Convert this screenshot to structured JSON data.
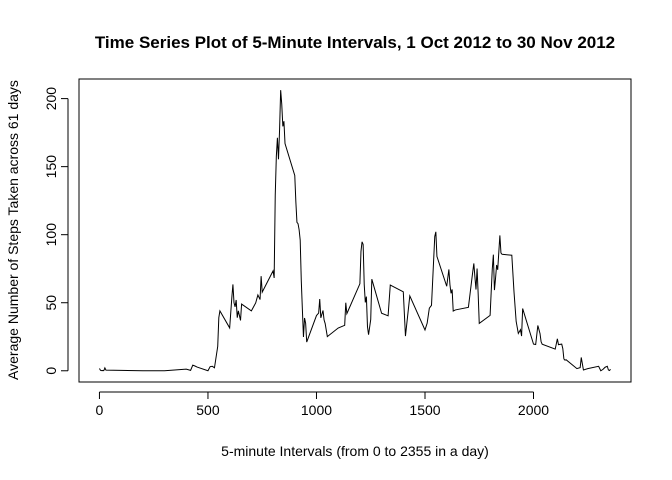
{
  "chart_data": {
    "type": "line",
    "title": "Time Series Plot of 5-Minute Intervals, 1 Oct 2012 to 30 Nov 2012",
    "x_label": "5-minute Intervals (from 0 to 2355 in a day)",
    "y_label": "Average Number of Steps Taken across 61 days",
    "color": "#000000",
    "x": [
      0,
      5,
      10,
      15,
      20,
      25,
      30,
      100,
      200,
      300,
      400,
      420,
      430,
      440,
      450,
      500,
      510,
      520,
      530,
      545,
      550,
      555,
      600,
      610,
      615,
      620,
      625,
      630,
      635,
      640,
      650,
      655,
      700,
      720,
      730,
      740,
      745,
      750,
      800,
      805,
      810,
      815,
      820,
      825,
      830,
      835,
      840,
      845,
      850,
      855,
      900,
      905,
      910,
      915,
      920,
      925,
      930,
      935,
      940,
      945,
      950,
      955,
      1000,
      1010,
      1015,
      1020,
      1030,
      1035,
      1040,
      1050,
      1100,
      1130,
      1135,
      1140,
      1200,
      1205,
      1210,
      1215,
      1220,
      1225,
      1230,
      1235,
      1240,
      1250,
      1255,
      1300,
      1330,
      1340,
      1400,
      1410,
      1430,
      1500,
      1510,
      1520,
      1530,
      1545,
      1550,
      1555,
      1600,
      1610,
      1615,
      1620,
      1625,
      1630,
      1640,
      1700,
      1720,
      1725,
      1730,
      1735,
      1740,
      1745,
      1750,
      1800,
      1805,
      1810,
      1815,
      1820,
      1825,
      1830,
      1835,
      1845,
      1850,
      1855,
      1900,
      1910,
      1920,
      1930,
      1940,
      1945,
      1950,
      2000,
      2010,
      2020,
      2030,
      2035,
      2040,
      2100,
      2110,
      2115,
      2130,
      2135,
      2140,
      2145,
      2150,
      2200,
      2215,
      2220,
      2230,
      2250,
      2300,
      2310,
      2320,
      2330,
      2340,
      2345,
      2350,
      2355
    ],
    "values": [
      1.7,
      0.3,
      0.1,
      0.2,
      0.1,
      2.1,
      0.5,
      0.3,
      0,
      0,
      1.2,
      0.3,
      4.1,
      3.5,
      2.7,
      0,
      3.0,
      3.3,
      2.2,
      18,
      39,
      44,
      31.5,
      53.8,
      63.5,
      50,
      47,
      52,
      39,
      44,
      37,
      49,
      44,
      49.9,
      55.7,
      52.3,
      69.5,
      57.8,
      73.4,
      68.2,
      129,
      157.5,
      171.2,
      155.4,
      177.3,
      206.2,
      195.9,
      179.6,
      183.4,
      167,
      143.5,
      124,
      109.1,
      108.1,
      103.7,
      96,
      66.2,
      45.2,
      24.8,
      38.8,
      35,
      21.1,
      40.6,
      42.4,
      52.7,
      38.9,
      44.3,
      37.4,
      34.7,
      25.1,
      31.4,
      33.4,
      50,
      42,
      63.9,
      87.7,
      94.8,
      92.8,
      63.4,
      50.2,
      54.5,
      32.4,
      26.5,
      37.7,
      67.3,
      42.3,
      40.4,
      63,
      58,
      25.5,
      55,
      30,
      35,
      46,
      48.1,
      98.7,
      102.1,
      84,
      62.1,
      74.5,
      63.2,
      56.9,
      59.8,
      43.9,
      44.7,
      46.6,
      72.7,
      78.9,
      68.9,
      59.7,
      75.1,
      56.5,
      34.8,
      40.7,
      58,
      74.7,
      85.3,
      59.3,
      67.8,
      77.7,
      74.2,
      99.5,
      86.6,
      85.6,
      84.9,
      58.2,
      36.3,
      27.4,
      30.2,
      25.5,
      45.7,
      19.6,
      19.3,
      33.3,
      27.3,
      21.3,
      19.5,
      15.9,
      23.5,
      19.2,
      19.6,
      16.3,
      8.7,
      7.8,
      8.1,
      1.6,
      2.3,
      9.8,
      0.6,
      1.6,
      3.3,
      0,
      1,
      2.6,
      3.3,
      0.6,
      0.2,
      1.1
    ],
    "xlim": [
      -94.2,
      2449.2
    ],
    "xticks": [
      0,
      500,
      1000,
      1500,
      2000
    ],
    "ylim": [
      -8.25,
      214.4
    ],
    "yticks": [
      0,
      50,
      100,
      150,
      200
    ]
  }
}
